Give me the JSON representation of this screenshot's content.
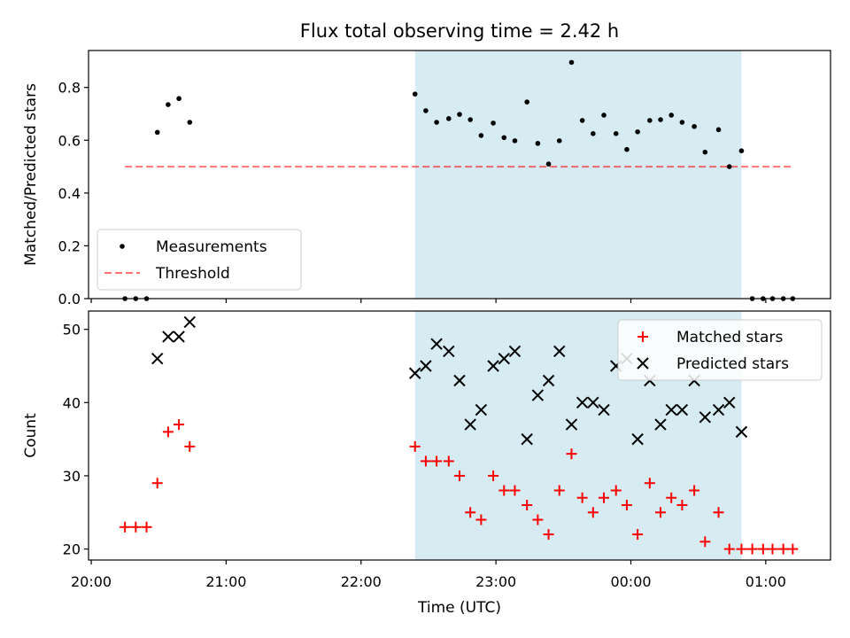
{
  "chart_data": {
    "title": "Flux total observing time = 2.42 h",
    "xlabel": "Time (UTC)",
    "x_ticks": [
      "20:00",
      "21:00",
      "22:00",
      "23:00",
      "00:00",
      "01:00"
    ],
    "x_range_hours": [
      19.98,
      25.48
    ],
    "shaded_span_hours": [
      22.4,
      24.82
    ],
    "colors": {
      "shade": "#add8e6",
      "threshold": "#ff0000",
      "matched": "#ff0000",
      "predicted": "#000000",
      "measurements": "#000000"
    },
    "panels": [
      {
        "type": "scatter",
        "ylabel": "Matched/Predicted stars",
        "ylim": [
          0,
          0.94
        ],
        "y_ticks": [
          0.0,
          0.2,
          0.4,
          0.6,
          0.8
        ],
        "legend_position": "lower-left",
        "threshold": {
          "name": "Threshold",
          "value": 0.5,
          "x_range_hours": [
            20.25,
            25.2
          ]
        },
        "series": [
          {
            "name": "Measurements",
            "points": [
              [
                20.25,
                0
              ],
              [
                20.33,
                0
              ],
              [
                20.41,
                0
              ],
              [
                20.49,
                0.63
              ],
              [
                20.57,
                0.735
              ],
              [
                20.65,
                0.758
              ],
              [
                20.73,
                0.668
              ],
              [
                22.4,
                0.775
              ],
              [
                22.48,
                0.712
              ],
              [
                22.56,
                0.668
              ],
              [
                22.65,
                0.682
              ],
              [
                22.73,
                0.698
              ],
              [
                22.81,
                0.678
              ],
              [
                22.89,
                0.618
              ],
              [
                22.98,
                0.665
              ],
              [
                23.06,
                0.61
              ],
              [
                23.14,
                0.598
              ],
              [
                23.23,
                0.745
              ],
              [
                23.31,
                0.588
              ],
              [
                23.39,
                0.51
              ],
              [
                23.47,
                0.598
              ],
              [
                23.56,
                0.895
              ],
              [
                23.64,
                0.675
              ],
              [
                23.72,
                0.625
              ],
              [
                23.8,
                0.695
              ],
              [
                23.89,
                0.625
              ],
              [
                23.97,
                0.565
              ],
              [
                24.05,
                0.632
              ],
              [
                24.14,
                0.675
              ],
              [
                24.22,
                0.678
              ],
              [
                24.3,
                0.695
              ],
              [
                24.38,
                0.668
              ],
              [
                24.47,
                0.652
              ],
              [
                24.55,
                0.555
              ],
              [
                24.65,
                0.64
              ],
              [
                24.73,
                0.5
              ],
              [
                24.82,
                0.56
              ],
              [
                24.9,
                0
              ],
              [
                24.98,
                0
              ],
              [
                25.05,
                0
              ],
              [
                25.13,
                0
              ],
              [
                25.2,
                0
              ]
            ]
          }
        ]
      },
      {
        "type": "scatter",
        "ylabel": "Count",
        "ylim": [
          18.5,
          52.5
        ],
        "y_ticks": [
          20,
          30,
          40,
          50
        ],
        "legend_position": "upper-right",
        "series": [
          {
            "name": "Matched stars",
            "marker": "+",
            "points": [
              [
                20.25,
                23
              ],
              [
                20.33,
                23
              ],
              [
                20.41,
                23
              ],
              [
                20.49,
                29
              ],
              [
                20.57,
                36
              ],
              [
                20.65,
                37
              ],
              [
                20.73,
                34
              ],
              [
                22.4,
                34
              ],
              [
                22.48,
                32
              ],
              [
                22.56,
                32
              ],
              [
                22.65,
                32
              ],
              [
                22.73,
                30
              ],
              [
                22.81,
                25
              ],
              [
                22.89,
                24
              ],
              [
                22.98,
                30
              ],
              [
                23.06,
                28
              ],
              [
                23.14,
                28
              ],
              [
                23.23,
                26
              ],
              [
                23.31,
                24
              ],
              [
                23.39,
                22
              ],
              [
                23.47,
                28
              ],
              [
                23.56,
                33
              ],
              [
                23.64,
                27
              ],
              [
                23.72,
                25
              ],
              [
                23.8,
                27
              ],
              [
                23.89,
                28
              ],
              [
                23.97,
                26
              ],
              [
                24.05,
                22
              ],
              [
                24.14,
                29
              ],
              [
                24.22,
                25
              ],
              [
                24.3,
                27
              ],
              [
                24.38,
                26
              ],
              [
                24.47,
                28
              ],
              [
                24.55,
                21
              ],
              [
                24.65,
                25
              ],
              [
                24.73,
                20
              ],
              [
                24.82,
                20
              ],
              [
                24.9,
                20
              ],
              [
                24.98,
                20
              ],
              [
                25.05,
                20
              ],
              [
                25.13,
                20
              ],
              [
                25.2,
                20
              ]
            ]
          },
          {
            "name": "Predicted stars",
            "marker": "x",
            "points": [
              [
                20.49,
                46
              ],
              [
                20.57,
                49
              ],
              [
                20.65,
                49
              ],
              [
                20.73,
                51
              ],
              [
                22.4,
                44
              ],
              [
                22.48,
                45
              ],
              [
                22.56,
                48
              ],
              [
                22.65,
                47
              ],
              [
                22.73,
                43
              ],
              [
                22.81,
                37
              ],
              [
                22.89,
                39
              ],
              [
                22.98,
                45
              ],
              [
                23.06,
                46
              ],
              [
                23.14,
                47
              ],
              [
                23.23,
                35
              ],
              [
                23.31,
                41
              ],
              [
                23.39,
                43
              ],
              [
                23.47,
                47
              ],
              [
                23.56,
                37
              ],
              [
                23.64,
                40
              ],
              [
                23.72,
                40
              ],
              [
                23.8,
                39
              ],
              [
                23.89,
                45
              ],
              [
                23.97,
                46
              ],
              [
                24.05,
                35
              ],
              [
                24.14,
                43
              ],
              [
                24.22,
                37
              ],
              [
                24.3,
                39
              ],
              [
                24.38,
                39
              ],
              [
                24.47,
                43
              ],
              [
                24.55,
                38
              ],
              [
                24.65,
                39
              ],
              [
                24.73,
                40
              ],
              [
                24.82,
                36
              ]
            ]
          }
        ]
      }
    ]
  }
}
